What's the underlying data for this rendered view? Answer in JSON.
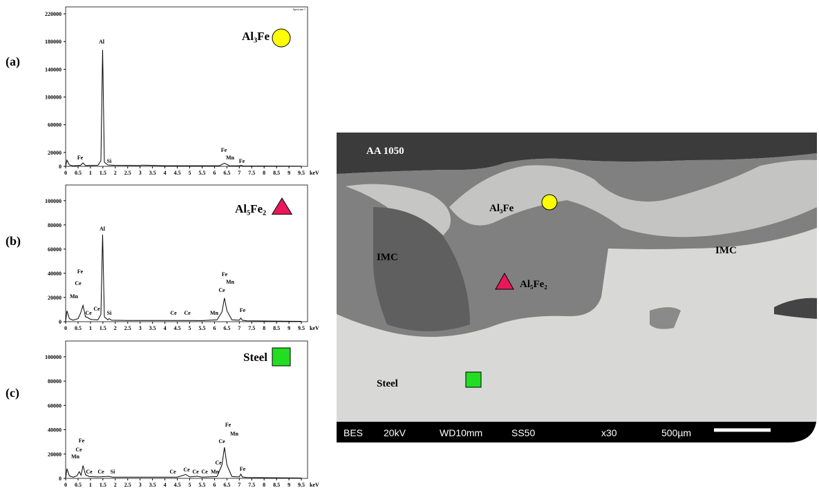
{
  "chart_data": [
    {
      "type": "line",
      "label": "(a)",
      "corner_label": "Spectrum 1",
      "xlabel": "keV",
      "xlim": [
        0,
        9.75
      ],
      "xticks": [
        0,
        0.5,
        1,
        1.5,
        2,
        2.5,
        3,
        3.5,
        4,
        4.5,
        5,
        5.5,
        6,
        6.5,
        7,
        7.5,
        8,
        8.5,
        9,
        9.5
      ],
      "ylim": [
        0,
        230000
      ],
      "yticks": [
        0,
        20000,
        60000,
        100000,
        140000,
        180000,
        220000
      ],
      "legend_marker": {
        "shape": "circle",
        "color": "#ffff00"
      },
      "annotations": [
        "Al",
        "Fe",
        "Si",
        "Fe",
        "Mn",
        "Fe"
      ],
      "x": [
        0,
        0.05,
        0.15,
        0.3,
        0.6,
        0.7,
        0.8,
        1.3,
        1.42,
        1.49,
        1.56,
        1.7,
        2,
        3,
        3.1,
        4,
        6.2,
        6.4,
        6.6,
        7.0,
        7.06,
        7.15,
        9.5
      ],
      "series": [
        {
          "name": "Al₃Fe",
          "color": "#000000",
          "values": [
            0,
            9000,
            2000,
            800,
            1500,
            5000,
            1200,
            1500,
            8000,
            168000,
            6000,
            2000,
            1500,
            1200,
            1800,
            900,
            900,
            4500,
            900,
            700,
            1500,
            600,
            300
          ]
        }
      ]
    },
    {
      "type": "line",
      "label": "(b)",
      "xlabel": "keV",
      "xlim": [
        0,
        9.75
      ],
      "xticks": [
        0,
        0.5,
        1,
        1.5,
        2,
        2.5,
        3,
        3.5,
        4,
        4.5,
        5,
        5.5,
        6,
        6.5,
        7,
        7.5,
        8,
        8.5,
        9,
        9.5
      ],
      "ylim": [
        0,
        113000
      ],
      "yticks": [
        0,
        20000,
        40000,
        60000,
        80000,
        100000
      ],
      "legend_marker": {
        "shape": "triangle",
        "color": "#e8185a"
      },
      "annotations": [
        "Al",
        "Fe",
        "Ce",
        "Mn",
        "Ce",
        "Ce",
        "Si",
        "Ce",
        "Ce",
        "Mn",
        "Fe",
        "Mn",
        "Ce",
        "Fe"
      ],
      "x": [
        0,
        0.05,
        0.15,
        0.3,
        0.5,
        0.6,
        0.7,
        0.8,
        0.88,
        0.95,
        1.05,
        1.3,
        1.42,
        1.49,
        1.56,
        1.7,
        1.75,
        1.85,
        2.5,
        4.8,
        5.5,
        6.1,
        6.3,
        6.4,
        6.5,
        6.7,
        7.0,
        7.06,
        7.12,
        7.3,
        9.5
      ],
      "series": [
        {
          "name": "Al₅Fe₂",
          "color": "#000000",
          "values": [
            0,
            9000,
            2500,
            1200,
            2500,
            7000,
            13500,
            4000,
            3500,
            2500,
            1800,
            1500,
            6000,
            72000,
            4000,
            1500,
            2500,
            1200,
            1000,
            1000,
            900,
            1500,
            8000,
            19500,
            9000,
            1500,
            1200,
            3000,
            1200,
            700,
            300
          ]
        }
      ]
    },
    {
      "type": "line",
      "label": "(c)",
      "xlabel": "keV",
      "xlim": [
        0,
        9.75
      ],
      "xticks": [
        0,
        0.5,
        1,
        1.5,
        2,
        2.5,
        3,
        3.5,
        4,
        4.5,
        5,
        5.5,
        6,
        6.5,
        7,
        7.5,
        8,
        8.5,
        9,
        9.5
      ],
      "ylim": [
        0,
        113000
      ],
      "yticks": [
        0,
        20000,
        40000,
        60000,
        80000,
        100000
      ],
      "legend_marker": {
        "shape": "square",
        "color": "#22dd22"
      },
      "annotations": [
        "Fe",
        "Ce",
        "Mn",
        "Ce",
        "Ce",
        "Si",
        "Ce",
        "Ce",
        "Ce",
        "Ce",
        "Mn",
        "Ce",
        "Fe",
        "Ce",
        "Mn",
        "Fe"
      ],
      "x": [
        0,
        0.05,
        0.15,
        0.3,
        0.45,
        0.55,
        0.62,
        0.7,
        0.8,
        0.95,
        1.3,
        1.74,
        1.9,
        4.5,
        4.84,
        5.0,
        5.3,
        5.5,
        6.1,
        6.3,
        6.4,
        6.5,
        6.7,
        7.0,
        7.06,
        7.12,
        7.3,
        9.5
      ],
      "series": [
        {
          "name": "Steel",
          "color": "#000000",
          "values": [
            0,
            8000,
            2000,
            1000,
            2000,
            5500,
            2500,
            10500,
            3000,
            1500,
            1200,
            1600,
            1000,
            1000,
            3200,
            1200,
            1800,
            1000,
            1500,
            11000,
            25500,
            11000,
            1500,
            1200,
            3500,
            1200,
            700,
            300
          ]
        }
      ]
    }
  ],
  "image": {
    "labels": [
      "AA 1050",
      "Al₃Fe",
      "Al₅Fe₂",
      "IMC",
      "IMC",
      "Steel"
    ],
    "info": [
      "BES",
      "20kV",
      "WD10mm",
      "SS50",
      "x30",
      "500µm"
    ]
  }
}
